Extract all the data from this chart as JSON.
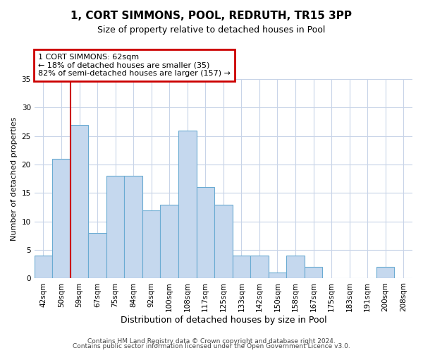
{
  "title": "1, CORT SIMMONS, POOL, REDRUTH, TR15 3PP",
  "subtitle": "Size of property relative to detached houses in Pool",
  "xlabel": "Distribution of detached houses by size in Pool",
  "ylabel": "Number of detached properties",
  "footer_line1": "Contains HM Land Registry data © Crown copyright and database right 2024.",
  "footer_line2": "Contains public sector information licensed under the Open Government Licence v3.0.",
  "bin_labels": [
    "42sqm",
    "50sqm",
    "59sqm",
    "67sqm",
    "75sqm",
    "84sqm",
    "92sqm",
    "100sqm",
    "108sqm",
    "117sqm",
    "125sqm",
    "133sqm",
    "142sqm",
    "150sqm",
    "158sqm",
    "167sqm",
    "175sqm",
    "183sqm",
    "191sqm",
    "200sqm",
    "208sqm"
  ],
  "bar_values": [
    4,
    21,
    27,
    8,
    18,
    18,
    12,
    13,
    26,
    16,
    13,
    4,
    4,
    1,
    4,
    2,
    0,
    0,
    0,
    2,
    0
  ],
  "bar_color": "#c5d8ee",
  "bar_edgecolor": "#6aabd2",
  "red_line_index": 2,
  "annotation_title": "1 CORT SIMMONS: 62sqm",
  "annotation_line1": "← 18% of detached houses are smaller (35)",
  "annotation_line2": "82% of semi-detached houses are larger (157) →",
  "annotation_box_facecolor": "#ffffff",
  "annotation_border_color": "#cc0000",
  "ylim": [
    0,
    35
  ],
  "yticks": [
    0,
    5,
    10,
    15,
    20,
    25,
    30,
    35
  ],
  "background_color": "#ffffff",
  "grid_color": "#c8d4e8",
  "title_fontsize": 11,
  "subtitle_fontsize": 9,
  "ylabel_fontsize": 8,
  "xlabel_fontsize": 9,
  "tick_fontsize": 7.5,
  "footer_fontsize": 6.5
}
